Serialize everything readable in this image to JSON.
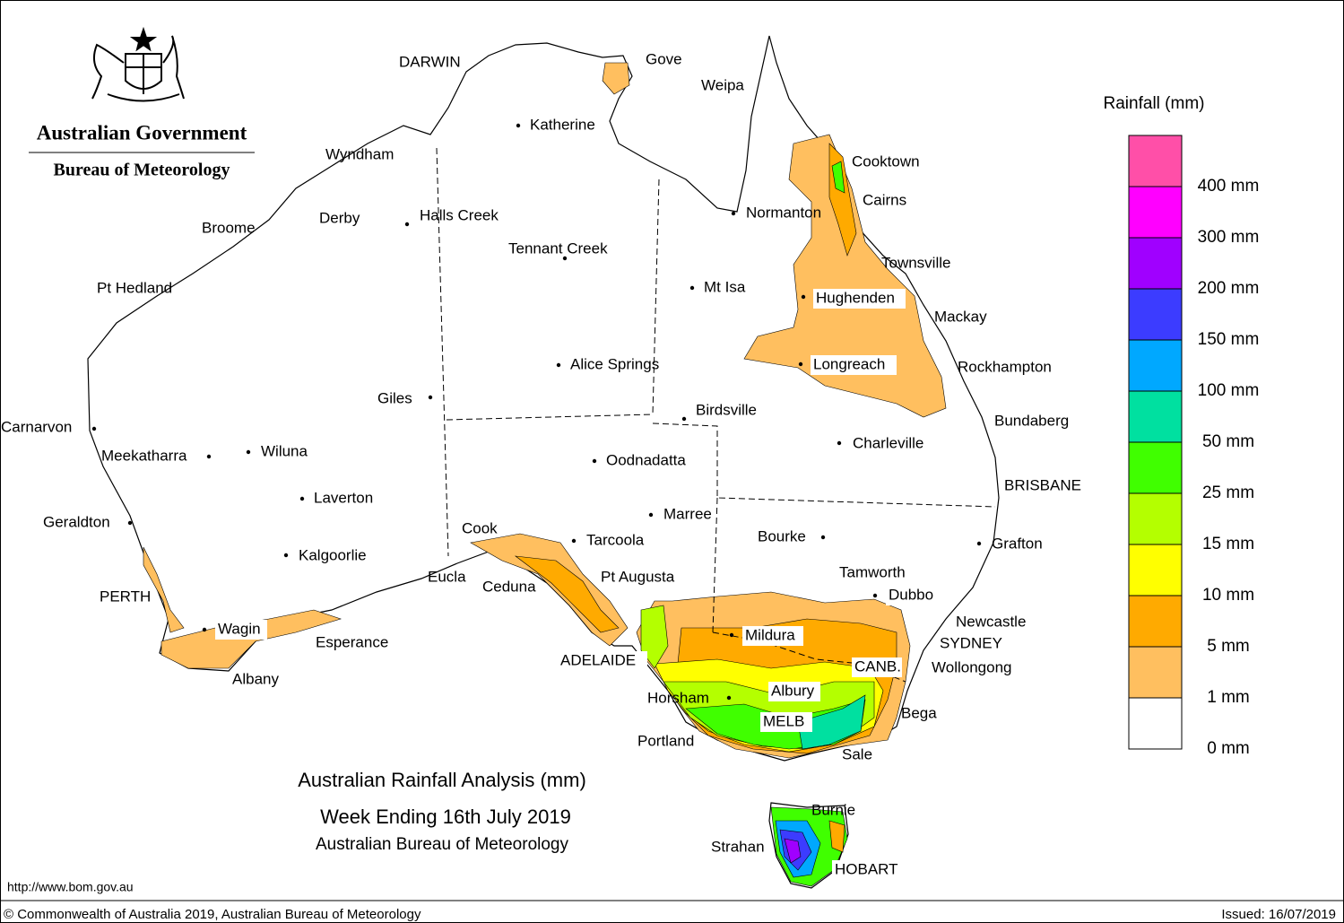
{
  "header": {
    "agency": "Australian Government",
    "bureau": "Bureau of Meteorology"
  },
  "title": {
    "line1": "Australian Rainfall Analysis (mm)",
    "line2": "Week Ending 16th July 2019",
    "line3": "Australian Bureau of Meteorology"
  },
  "legend": {
    "title": "Rainfall (mm)",
    "items": [
      {
        "label": "400 mm",
        "color": "#ff4fa8"
      },
      {
        "label": "300 mm",
        "color": "#ff00ff"
      },
      {
        "label": "200 mm",
        "color": "#a000ff"
      },
      {
        "label": "150 mm",
        "color": "#3c3cff"
      },
      {
        "label": "100 mm",
        "color": "#00a8ff"
      },
      {
        "label": "50 mm",
        "color": "#00e0a0"
      },
      {
        "label": "25 mm",
        "color": "#40ff00"
      },
      {
        "label": "15 mm",
        "color": "#b4ff00"
      },
      {
        "label": "10 mm",
        "color": "#ffff00"
      },
      {
        "label": "5 mm",
        "color": "#ffaa00"
      },
      {
        "label": "1 mm",
        "color": "#ffbf5f"
      },
      {
        "label": "0 mm",
        "color": "#ffffff"
      }
    ]
  },
  "places": [
    "DARWIN",
    "Gove",
    "Weipa",
    "Katherine",
    "Wyndham",
    "Cooktown",
    "Cairns",
    "Normanton",
    "Derby",
    "Halls Creek",
    "Broome",
    "Tennant Creek",
    "Townsville",
    "Pt Hedland",
    "Mt Isa",
    "Hughenden",
    "Mackay",
    "Alice Springs",
    "Longreach",
    "Rockhampton",
    "Giles",
    "Birdsville",
    "Bundaberg",
    "Carnarvon",
    "Charleville",
    "Meekatharra",
    "Wiluna",
    "Oodnadatta",
    "BRISBANE",
    "Laverton",
    "Marree",
    "Geraldton",
    "Cook",
    "Bourke",
    "Tarcoola",
    "Grafton",
    "Kalgoorlie",
    "Tamworth",
    "Pt Augusta",
    "Eucla",
    "Ceduna",
    "Dubbo",
    "PERTH",
    "Newcastle",
    "Wagin",
    "Mildura",
    "Esperance",
    "SYDNEY",
    "ADELAIDE",
    "CANB.",
    "Wollongong",
    "Albury",
    "Horsham",
    "Albany",
    "Bega",
    "MELB",
    "Portland",
    "Sale",
    "Burnie",
    "Strahan",
    "HOBART"
  ],
  "footer": {
    "url": "http://www.bom.gov.au",
    "copyright": "© Commonwealth of Australia 2019, Australian Bureau of Meteorology",
    "issued": "Issued: 16/07/2019"
  }
}
